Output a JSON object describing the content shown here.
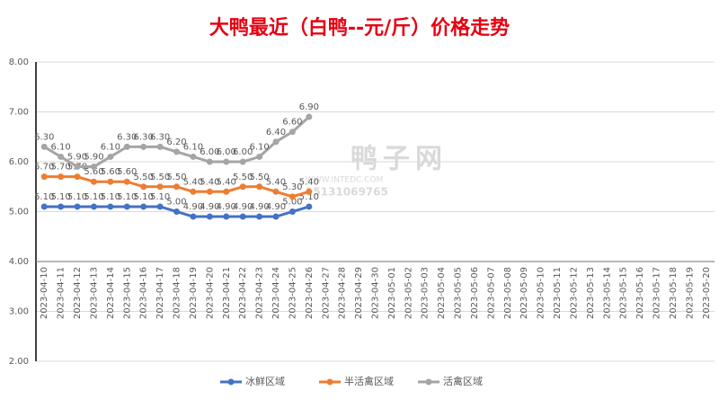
{
  "chart_data": {
    "type": "line",
    "title": "大鸭最近（白鸭--元/斤）价格走势",
    "watermark": [
      "鸭子网",
      "WWW.INTEDC.COM",
      "15131069765"
    ],
    "categories": [
      "2023-04-10",
      "2023-04-11",
      "2023-04-12",
      "2023-04-13",
      "2023-04-14",
      "2023-04-15",
      "2023-04-16",
      "2023-04-17",
      "2023-04-18",
      "2023-04-19",
      "2023-04-20",
      "2023-04-21",
      "2023-04-22",
      "2023-04-23",
      "2023-04-24",
      "2023-04-25",
      "2023-04-26",
      "2023-04-27",
      "2023-04-28",
      "2023-04-29",
      "2023-04-30",
      "2023-05-01",
      "2023-05-02",
      "2023-05-03",
      "2023-05-04",
      "2023-05-05",
      "2023-05-06",
      "2023-05-07",
      "2023-05-08",
      "2023-05-09",
      "2023-05-10",
      "2023-05-11",
      "2023-05-12",
      "2023-05-13",
      "2023-05-14",
      "2023-05-15",
      "2023-05-16",
      "2023-05-17",
      "2023-05-18",
      "2023-05-19",
      "2023-05-20"
    ],
    "series": [
      {
        "name": "冰鲜区域",
        "color": "#4472c4",
        "values": [
          5.1,
          5.1,
          5.1,
          5.1,
          5.1,
          5.1,
          5.1,
          5.1,
          5.0,
          4.9,
          4.9,
          4.9,
          4.9,
          4.9,
          4.9,
          5.0,
          5.1,
          null,
          null,
          null,
          null,
          null,
          null,
          null,
          null,
          null,
          null,
          null,
          null,
          null,
          null,
          null,
          null,
          null,
          null,
          null,
          null,
          null,
          null,
          null,
          null
        ],
        "value_labels": [
          "5.10",
          "5.10",
          "5.10",
          "5.10",
          "5.10",
          "5.10",
          "5.10",
          "5.10",
          "5.00",
          "4.90",
          "4.90",
          "4.90",
          "4.90",
          "4.90",
          "4.90",
          "5.00",
          "5.10",
          null,
          null,
          null,
          null,
          null,
          null,
          null,
          null,
          null,
          null,
          null,
          null,
          null,
          null,
          null,
          null,
          null,
          null,
          null,
          null,
          null,
          null,
          null,
          null
        ]
      },
      {
        "name": "半活禽区域",
        "color": "#ed7d31",
        "values": [
          5.7,
          5.7,
          5.7,
          5.6,
          5.6,
          5.6,
          5.5,
          5.5,
          5.5,
          5.4,
          5.4,
          5.4,
          5.5,
          5.5,
          5.4,
          5.3,
          5.4,
          null,
          null,
          null,
          null,
          null,
          null,
          null,
          null,
          null,
          null,
          null,
          null,
          null,
          null,
          null,
          null,
          null,
          null,
          null,
          null,
          null,
          null,
          null,
          null
        ],
        "value_labels": [
          "5.70",
          "5.70",
          "5.70",
          "5.60",
          "5.60",
          "5.60",
          "5.50",
          "5.50",
          "5.50",
          "5.40",
          "5.40",
          "5.40",
          "5.50",
          "5.50",
          "5.40",
          "5.30",
          "5.40",
          null,
          null,
          null,
          null,
          null,
          null,
          null,
          null,
          null,
          null,
          null,
          null,
          null,
          null,
          null,
          null,
          null,
          null,
          null,
          null,
          null,
          null,
          null,
          null
        ]
      },
      {
        "name": "活禽区域",
        "color": "#a5a5a5",
        "values": [
          6.3,
          6.1,
          5.9,
          5.9,
          6.1,
          6.3,
          6.3,
          6.3,
          6.2,
          6.1,
          6.0,
          6.0,
          6.0,
          6.1,
          6.4,
          6.6,
          6.9,
          null,
          null,
          null,
          null,
          null,
          null,
          null,
          null,
          null,
          null,
          null,
          null,
          null,
          null,
          null,
          null,
          null,
          null,
          null,
          null,
          null,
          null,
          null,
          null
        ],
        "value_labels": [
          "6.30",
          "6.10",
          "5.90",
          "5.90",
          "6.10",
          "6.30",
          "6.30",
          "6.30",
          "6.20",
          "6.10",
          "6.00",
          "6.00",
          "6.00",
          "6.10",
          "6.40",
          "6.60",
          "6.90",
          null,
          null,
          null,
          null,
          null,
          null,
          null,
          null,
          null,
          null,
          null,
          null,
          null,
          null,
          null,
          null,
          null,
          null,
          null,
          null,
          null,
          null,
          null,
          null
        ]
      }
    ],
    "ylim": [
      2,
      8
    ],
    "yticks": [
      {
        "value": 2,
        "label": "2.00"
      },
      {
        "value": 3,
        "label": "3.00"
      },
      {
        "value": 4,
        "label": "4.00"
      },
      {
        "value": 5,
        "label": "5.00"
      },
      {
        "value": 6,
        "label": "6.00"
      },
      {
        "value": 7,
        "label": "7.00"
      },
      {
        "value": 8,
        "label": "8.00"
      }
    ],
    "x_axis_crosses": 4,
    "grid": true,
    "legend": "bottom"
  }
}
